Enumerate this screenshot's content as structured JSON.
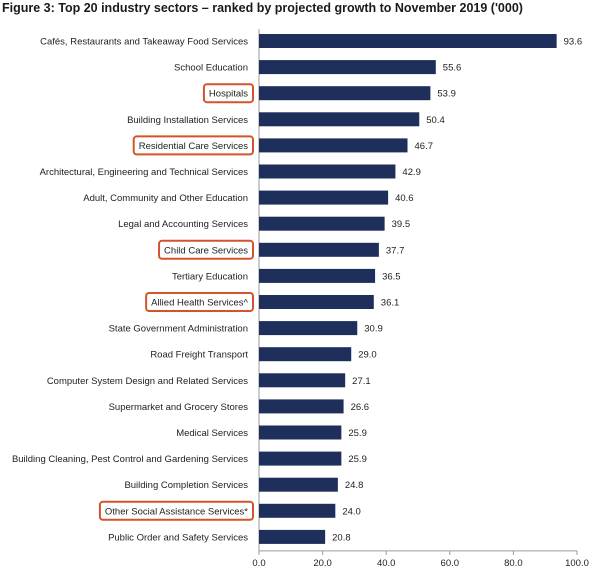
{
  "chart_data": {
    "type": "bar",
    "orientation": "horizontal",
    "title": "Figure 3: Top 20 industry sectors – ranked by projected growth to November 2019 ('000)",
    "categories": [
      "Cafés, Restaurants and Takeaway Food Services",
      "School Education",
      "Hospitals",
      "Building Installation Services",
      "Residential Care Services",
      "Architectural, Engineering and Technical Services",
      "Adult, Community and Other Education",
      "Legal and Accounting Services",
      "Child Care Services",
      "Tertiary Education",
      "Allied Health Services^",
      "State Government Administration",
      "Road Freight Transport",
      "Computer System Design and Related Services",
      "Supermarket and Grocery Stores",
      "Medical Services",
      "Building Cleaning, Pest Control and Gardening Services",
      "Building Completion Services",
      "Other Social Assistance Services*",
      "Public Order and Safety Services"
    ],
    "values": [
      93.6,
      55.6,
      53.9,
      50.4,
      46.7,
      42.9,
      40.6,
      39.5,
      37.7,
      36.5,
      36.1,
      30.9,
      29.0,
      27.1,
      26.6,
      25.9,
      25.9,
      24.8,
      24.0,
      20.8
    ],
    "value_labels": [
      "93.6",
      "55.6",
      "53.9",
      "50.4",
      "46.7",
      "42.9",
      "40.6",
      "39.5",
      "37.7",
      "36.5",
      "36.1",
      "30.9",
      "29.0",
      "27.1",
      "26.6",
      "25.9",
      "25.9",
      "24.8",
      "24.0",
      "20.8"
    ],
    "highlighted_categories": [
      "Hospitals",
      "Residential Care Services",
      "Child Care Services",
      "Allied Health Services^",
      "Other Social Assistance Services*"
    ],
    "xlim": [
      0,
      100
    ],
    "xticks": [
      0,
      20,
      40,
      60,
      80,
      100
    ],
    "xtick_labels": [
      "0.0",
      "20.0",
      "40.0",
      "60.0",
      "80.0",
      "100.0"
    ],
    "xlabel": "",
    "ylabel": "",
    "grid": false,
    "legend": "none",
    "bar_color": "#1f2f5c",
    "highlight_color": "#d4532b"
  }
}
